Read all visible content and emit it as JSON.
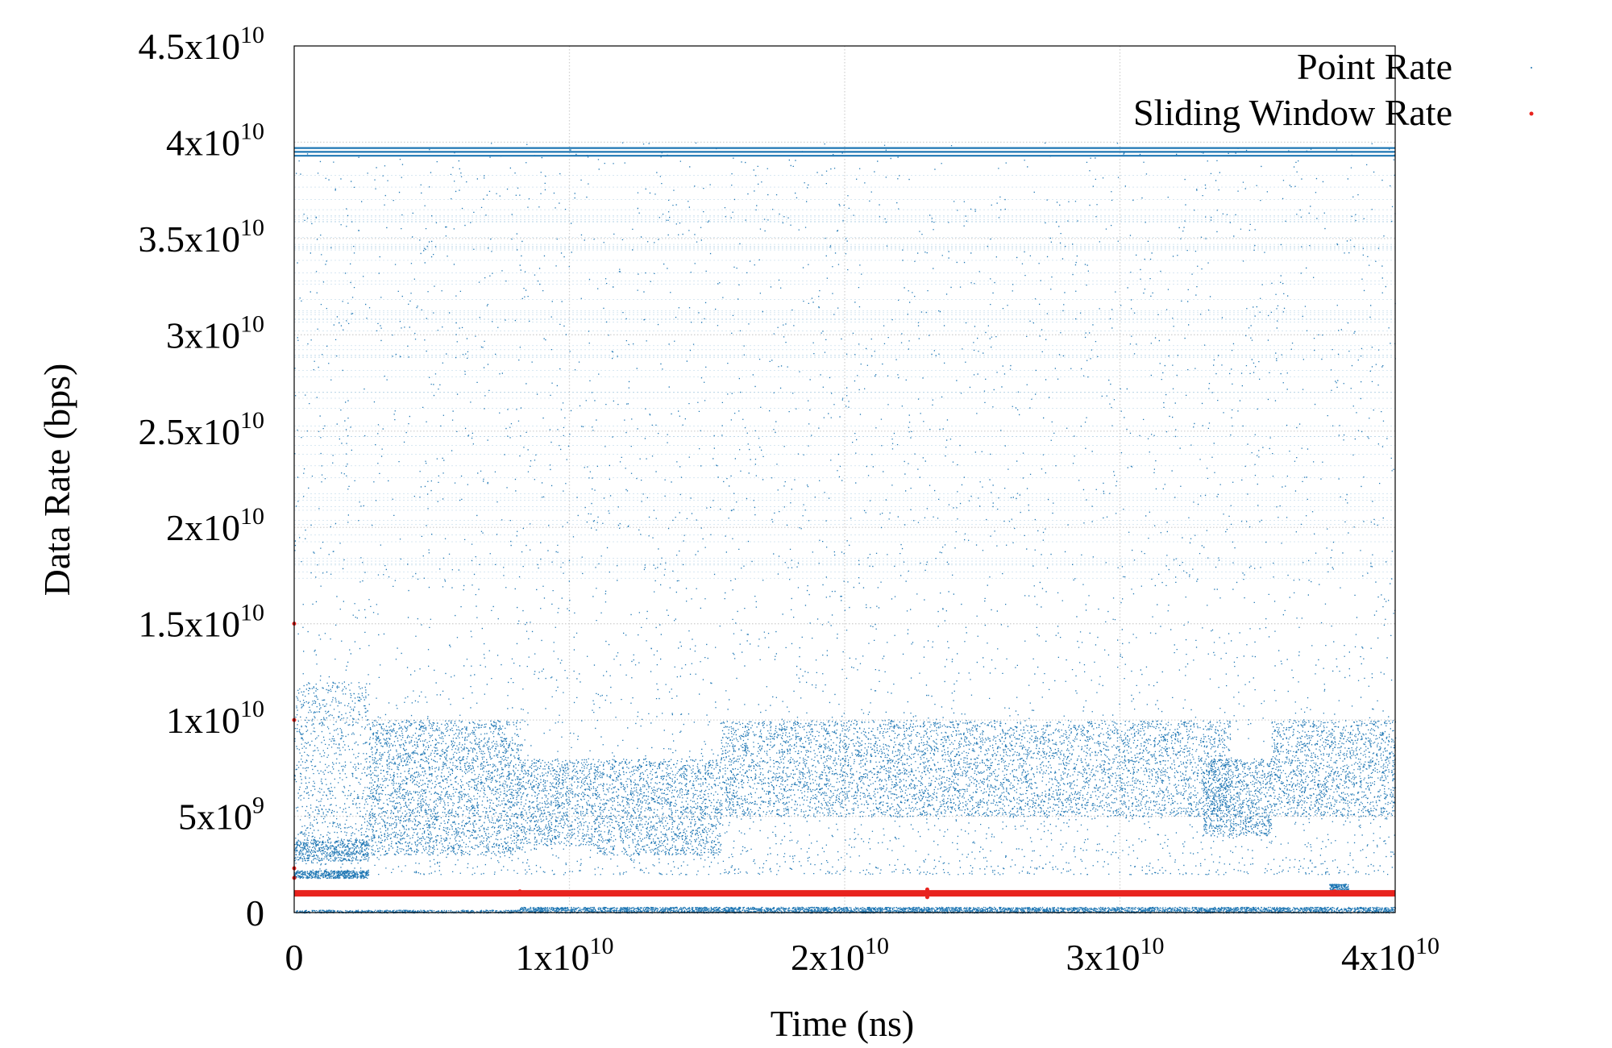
{
  "chart_data": {
    "type": "scatter",
    "title": "",
    "xlabel": "Time (ns)",
    "ylabel": "Data Rate (bps)",
    "xlim": [
      0,
      40000000000
    ],
    "ylim": [
      0,
      45000000000
    ],
    "grid": true,
    "legend_position": "top-right",
    "x_ticks": [
      {
        "value": 0,
        "base": "0",
        "exp": ""
      },
      {
        "value": 10000000000,
        "base": "1x10",
        "exp": "10"
      },
      {
        "value": 20000000000,
        "base": "2x10",
        "exp": "10"
      },
      {
        "value": 30000000000,
        "base": "3x10",
        "exp": "10"
      },
      {
        "value": 40000000000,
        "base": "4x10",
        "exp": "10"
      }
    ],
    "y_ticks": [
      {
        "value": 0,
        "base": "0",
        "exp": ""
      },
      {
        "value": 5000000000,
        "base": "5x10",
        "exp": "9"
      },
      {
        "value": 10000000000,
        "base": "1x10",
        "exp": "10"
      },
      {
        "value": 15000000000,
        "base": "1.5x10",
        "exp": "10"
      },
      {
        "value": 20000000000,
        "base": "2x10",
        "exp": "10"
      },
      {
        "value": 25000000000,
        "base": "2.5x10",
        "exp": "10"
      },
      {
        "value": 30000000000,
        "base": "3x10",
        "exp": "10"
      },
      {
        "value": 35000000000,
        "base": "3.5x10",
        "exp": "10"
      },
      {
        "value": 40000000000,
        "base": "4x10",
        "exp": "10"
      },
      {
        "value": 45000000000,
        "base": "4.5x10",
        "exp": "10"
      }
    ],
    "series": [
      {
        "name": "Point Rate",
        "color": "#1f77b4",
        "marker": "dot",
        "bands": [
          {
            "x": [
              0,
              2700000000
            ],
            "y": [
              1800000000,
              2200000000
            ],
            "count": 500
          },
          {
            "x": [
              0,
              2700000000
            ],
            "y": [
              2700000000,
              3800000000
            ],
            "count": 500
          },
          {
            "x": [
              0,
              2700000000
            ],
            "y": [
              3000000000,
              12000000000
            ],
            "count": 700
          },
          {
            "x": [
              2700000000,
              8200000000
            ],
            "y": [
              3000000000,
              10000000000
            ],
            "count": 2600
          },
          {
            "x": [
              8200000000,
              11000000000
            ],
            "y": [
              3500000000,
              8000000000
            ],
            "count": 900
          },
          {
            "x": [
              11000000000,
              15500000000
            ],
            "y": [
              3000000000,
              8000000000
            ],
            "count": 1500
          },
          {
            "x": [
              15500000000,
              34000000000
            ],
            "y": [
              5000000000,
              10000000000
            ],
            "count": 6000
          },
          {
            "x": [
              33000000000,
              35500000000
            ],
            "y": [
              4000000000,
              8000000000
            ],
            "count": 900
          },
          {
            "x": [
              35500000000,
              40000000000
            ],
            "y": [
              5000000000,
              10000000000
            ],
            "count": 1400
          },
          {
            "x": [
              0,
              40000000000
            ],
            "y": [
              2000000000,
              40000000000
            ],
            "count": 9000
          },
          {
            "x": [
              8200000000,
              40000000000
            ],
            "y": [
              0,
              300000000
            ],
            "count": 4500
          },
          {
            "x": [
              0,
              8200000000
            ],
            "y": [
              0,
              150000000
            ],
            "count": 600
          },
          {
            "x": [
              37600000000,
              38300000000
            ],
            "y": [
              1000000000,
              1500000000
            ],
            "count": 250
          }
        ],
        "lines_y": [
          39300000000,
          39500000000,
          39700000000
        ],
        "fine_lines_y_range": [
          16000000000,
          39000000000
        ]
      },
      {
        "name": "Sliding Window Rate",
        "color": "#e8231e",
        "marker": "dot",
        "points": [
          {
            "x": 0,
            "y": 1000000000
          },
          {
            "x": 40000000000,
            "y": 1000000000
          }
        ],
        "outliers": [
          {
            "x": 0,
            "y": 15000000000
          },
          {
            "x": 0,
            "y": 10000000000
          },
          {
            "x": 0,
            "y": 2300000000
          },
          {
            "x": 0,
            "y": 1800000000
          },
          {
            "x": 8200000000,
            "y": 1100000000
          },
          {
            "x": 23000000000,
            "y": 1200000000
          },
          {
            "x": 23000000000,
            "y": 800000000
          },
          {
            "x": 37800000000,
            "y": 1100000000
          }
        ]
      }
    ]
  }
}
